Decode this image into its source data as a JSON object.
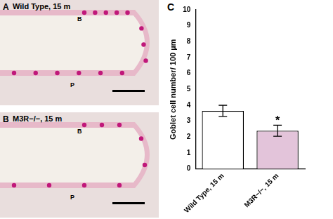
{
  "panels": [
    {
      "label": "A",
      "title": "Wild Type, 15 m",
      "marks": [
        "B",
        "P"
      ]
    },
    {
      "label": "B",
      "title": "M3R−/−, 15 m",
      "marks": [
        "B",
        "P"
      ]
    }
  ],
  "chart_data": {
    "type": "bar",
    "label": "C",
    "categories": [
      "Wild Type, 15 m",
      "M3R−/−, 15 m"
    ],
    "values": [
      3.65,
      2.4
    ],
    "errors": [
      0.35,
      0.35
    ],
    "colors": [
      "#ffffff",
      "#e3c4da"
    ],
    "y_label": "Goblet cell number/ 100 µm",
    "ylim": [
      0,
      10
    ],
    "yticks": [
      0,
      1,
      2,
      3,
      4,
      5,
      6,
      7,
      8,
      9,
      10
    ],
    "grid": false,
    "annotations": [
      {
        "text": "*",
        "category": "M3R−/−, 15 m"
      }
    ]
  }
}
